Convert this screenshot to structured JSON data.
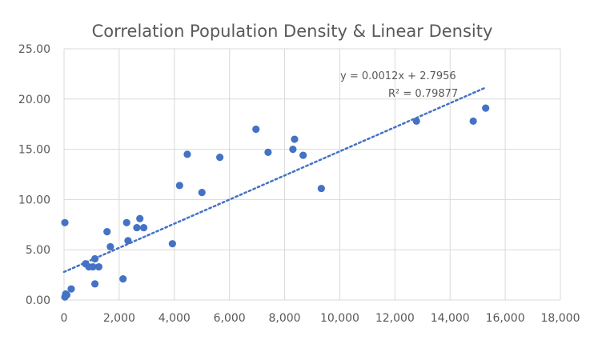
{
  "chart_data": {
    "type": "scatter",
    "title": "Correlation Population Density & Linear Density",
    "xlabel": "",
    "ylabel": "",
    "xlim": [
      0,
      18000
    ],
    "ylim": [
      0,
      25
    ],
    "x_ticks": [
      "0",
      "2,000",
      "4,000",
      "6,000",
      "8,000",
      "10,000",
      "12,000",
      "14,000",
      "16,000",
      "18,000"
    ],
    "y_ticks": [
      "0.00",
      "5.00",
      "10.00",
      "15.00",
      "20.00",
      "25.00"
    ],
    "grid": "vertical-and-horizontal",
    "legend": "none",
    "marker_color": "#4472C4",
    "trendline": {
      "type": "linear",
      "slope": 0.0012,
      "intercept": 2.7956,
      "x_range": [
        0,
        15300
      ],
      "equation_label": "y = 0.0012x + 2.7956",
      "r2_label": "R² = 0.79877"
    },
    "points": [
      {
        "x": 30,
        "y": 7.7
      },
      {
        "x": 30,
        "y": 0.3
      },
      {
        "x": 60,
        "y": 0.6
      },
      {
        "x": 100,
        "y": 0.5
      },
      {
        "x": 260,
        "y": 1.1
      },
      {
        "x": 780,
        "y": 3.6
      },
      {
        "x": 900,
        "y": 3.3
      },
      {
        "x": 1050,
        "y": 3.3
      },
      {
        "x": 1120,
        "y": 4.1
      },
      {
        "x": 1120,
        "y": 1.6
      },
      {
        "x": 1260,
        "y": 3.3
      },
      {
        "x": 1560,
        "y": 6.8
      },
      {
        "x": 1680,
        "y": 5.3
      },
      {
        "x": 2140,
        "y": 2.1
      },
      {
        "x": 2270,
        "y": 7.7
      },
      {
        "x": 2320,
        "y": 5.9
      },
      {
        "x": 2640,
        "y": 7.2
      },
      {
        "x": 2750,
        "y": 8.1
      },
      {
        "x": 2890,
        "y": 7.2
      },
      {
        "x": 3930,
        "y": 5.6
      },
      {
        "x": 4190,
        "y": 11.4
      },
      {
        "x": 4470,
        "y": 14.5
      },
      {
        "x": 5000,
        "y": 10.7
      },
      {
        "x": 5650,
        "y": 14.2
      },
      {
        "x": 6960,
        "y": 17.0
      },
      {
        "x": 7400,
        "y": 14.7
      },
      {
        "x": 8300,
        "y": 15.0
      },
      {
        "x": 8360,
        "y": 16.0
      },
      {
        "x": 8670,
        "y": 14.4
      },
      {
        "x": 9330,
        "y": 11.1
      },
      {
        "x": 12780,
        "y": 17.8
      },
      {
        "x": 14840,
        "y": 17.8
      },
      {
        "x": 15290,
        "y": 19.1
      }
    ]
  }
}
